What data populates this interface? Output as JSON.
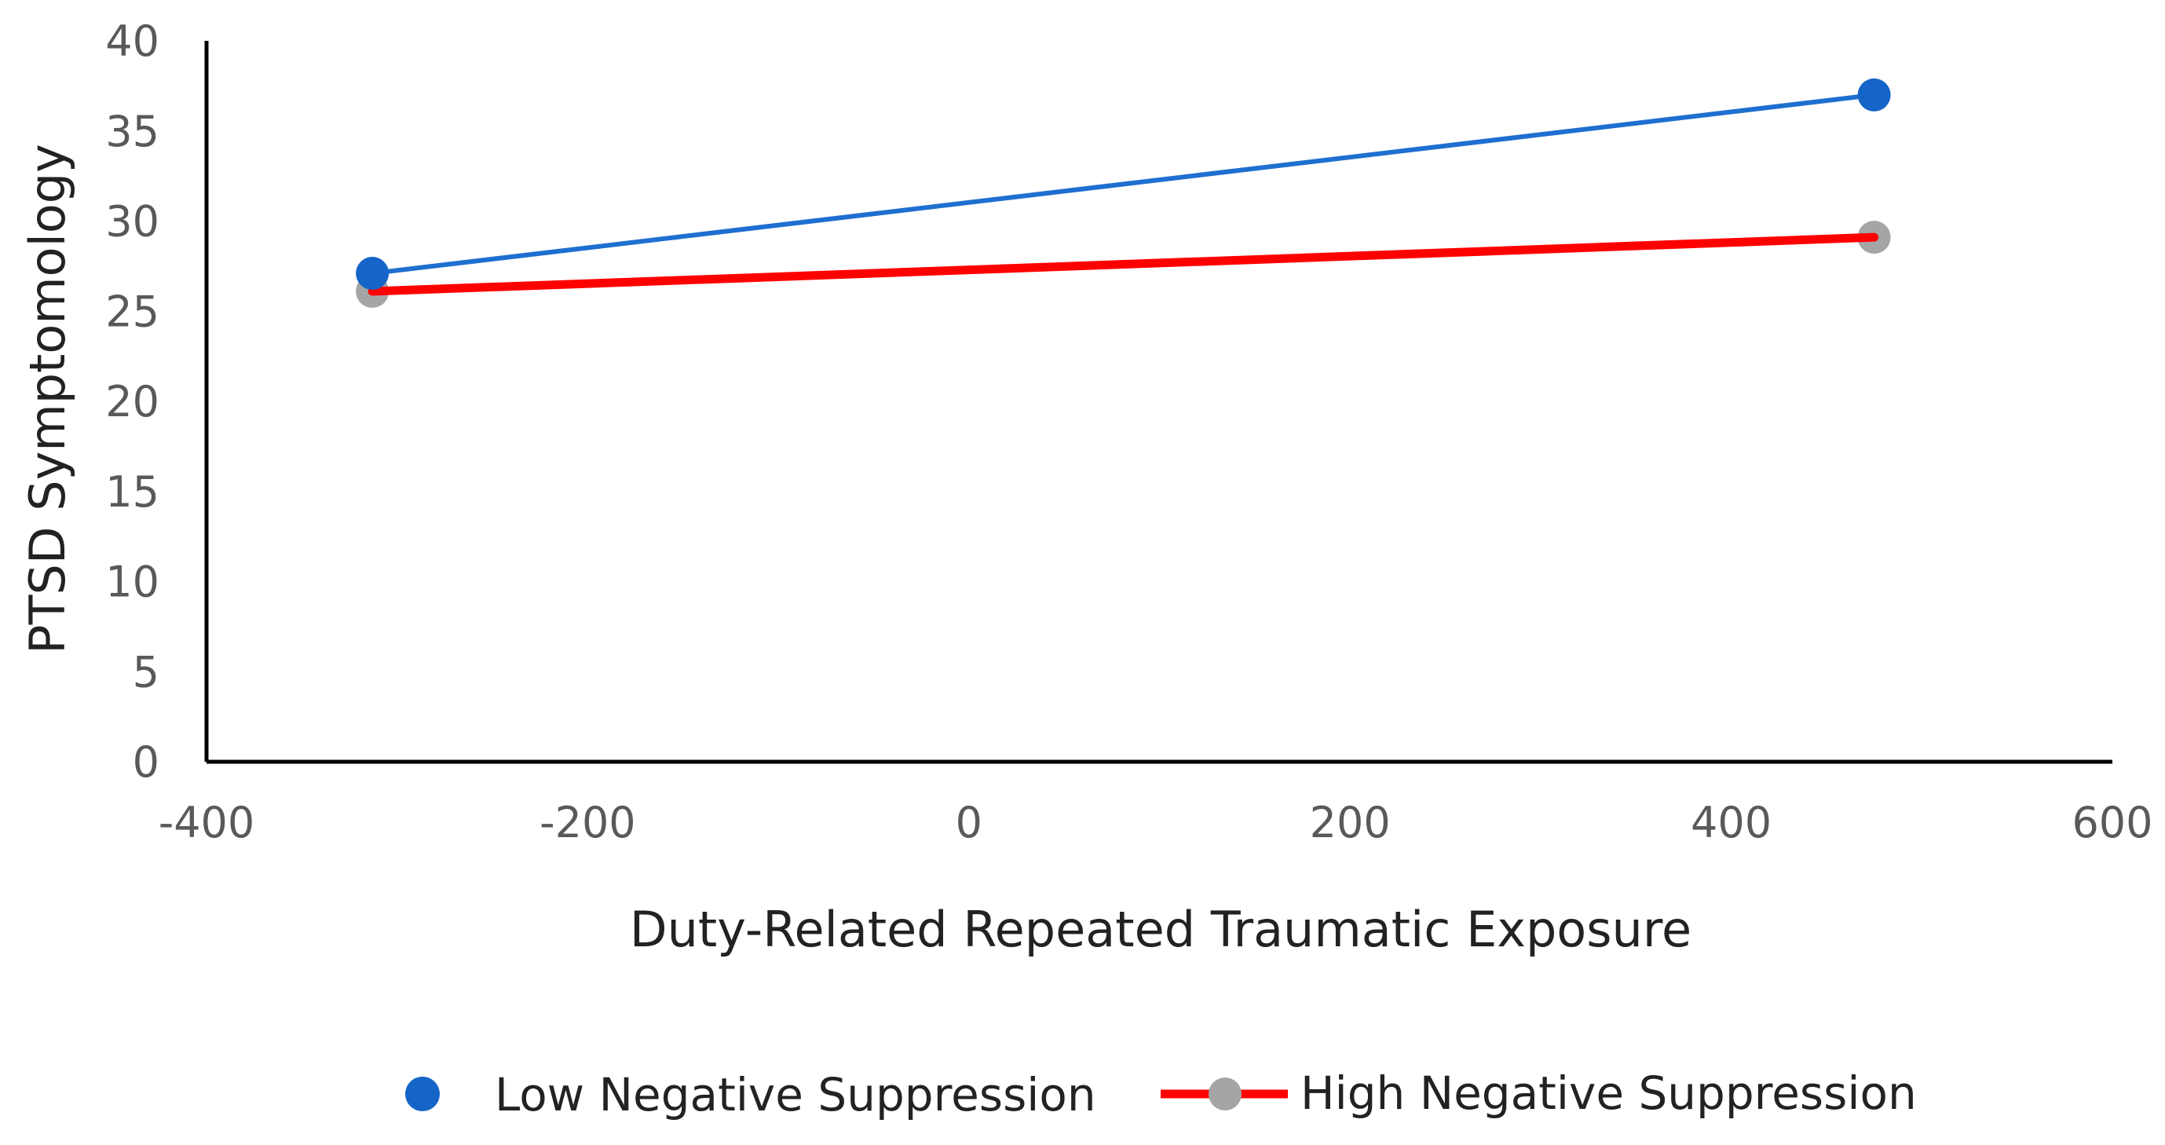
{
  "chart_data": {
    "type": "line",
    "title": "",
    "xlabel": "Duty-Related Repeated Traumatic Exposure",
    "ylabel": "PTSD Symptomology",
    "xlim": [
      -400,
      600
    ],
    "ylim": [
      0,
      40
    ],
    "x_ticks": [
      -400,
      -200,
      0,
      200,
      400,
      600
    ],
    "x_tick_labels": [
      "-400",
      "-200",
      "0",
      "200",
      "400",
      "600"
    ],
    "y_ticks": [
      0,
      5,
      10,
      15,
      20,
      25,
      30,
      35,
      40
    ],
    "y_tick_labels": [
      "0",
      "5",
      "10",
      "15",
      "20",
      "25",
      "30",
      "35",
      "40"
    ],
    "grid": false,
    "legend_position": "bottom",
    "series": [
      {
        "name": "Low Negative Suppression",
        "line_color": "#1F6FD0",
        "marker_color": "#1565C8",
        "x": [
          -313,
          475
        ],
        "y": [
          27.1,
          37.0
        ]
      },
      {
        "name": "High Negative Suppression",
        "line_color": "#FF0000",
        "marker_color": "#A5A5A5",
        "x": [
          -313,
          475
        ],
        "y": [
          26.1,
          29.1
        ]
      }
    ]
  }
}
